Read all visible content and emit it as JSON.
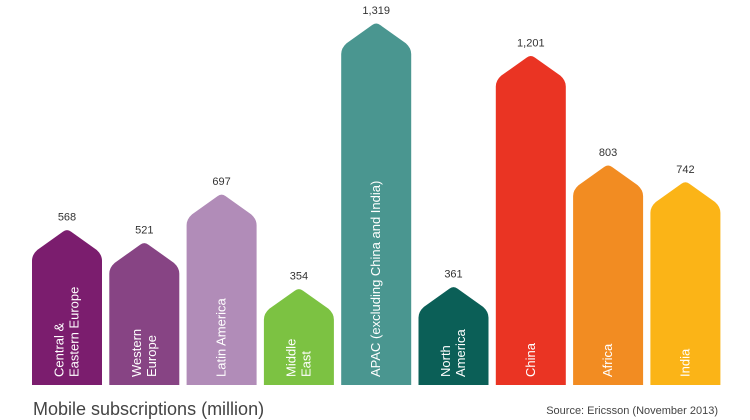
{
  "chart_data": {
    "type": "bar",
    "title": "Mobile subscriptions (million)",
    "source": "Source: Ericsson (November 2013)",
    "value_labels": [
      "568",
      "521",
      "697",
      "354",
      "1,319",
      "361",
      "1,201",
      "803",
      "742"
    ],
    "categories": [
      [
        "Central &",
        "Eastern Europe"
      ],
      [
        "Western",
        "Europe"
      ],
      [
        "Latin America"
      ],
      [
        "Middle",
        "East"
      ],
      [
        "APAC (excluding China and India)"
      ],
      [
        "North",
        "America"
      ],
      [
        "China"
      ],
      [
        "Africa"
      ],
      [
        "India"
      ]
    ],
    "values": [
      568,
      521,
      697,
      354,
      1319,
      361,
      1201,
      803,
      742
    ],
    "colors": [
      "#7b1d6e",
      "#874484",
      "#b18cb8",
      "#7cc242",
      "#4a9690",
      "#0b5f57",
      "#ea3423",
      "#f28c22",
      "#fbb417"
    ],
    "xlabel": "",
    "ylabel": "",
    "ylim": [
      0,
      1319
    ],
    "grid": false,
    "legend": "none"
  }
}
